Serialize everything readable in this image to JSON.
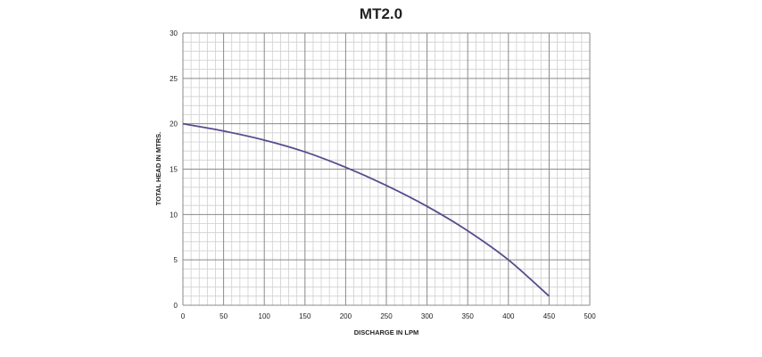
{
  "chart_data": {
    "type": "line",
    "title": "MT2.0",
    "xlabel": "DISCHARGE IN LPM",
    "ylabel": "TOTAL HEAD IN MTRS.",
    "xlim": [
      0,
      500
    ],
    "ylim": [
      0,
      30
    ],
    "x_major_ticks": [
      0,
      50,
      100,
      150,
      200,
      250,
      300,
      350,
      400,
      450,
      500
    ],
    "y_major_ticks": [
      0,
      5,
      10,
      15,
      20,
      25,
      30
    ],
    "x_minor_step": 10,
    "y_minor_step": 1,
    "grid": true,
    "legend": "none",
    "series": [
      {
        "x": [
          0,
          50,
          100,
          150,
          200,
          250,
          300,
          350,
          400,
          450
        ],
        "y": [
          20,
          19.2,
          18.2,
          16.9,
          15.2,
          13.2,
          10.9,
          8.2,
          5,
          1
        ],
        "color": "#5b4a8c"
      }
    ]
  }
}
